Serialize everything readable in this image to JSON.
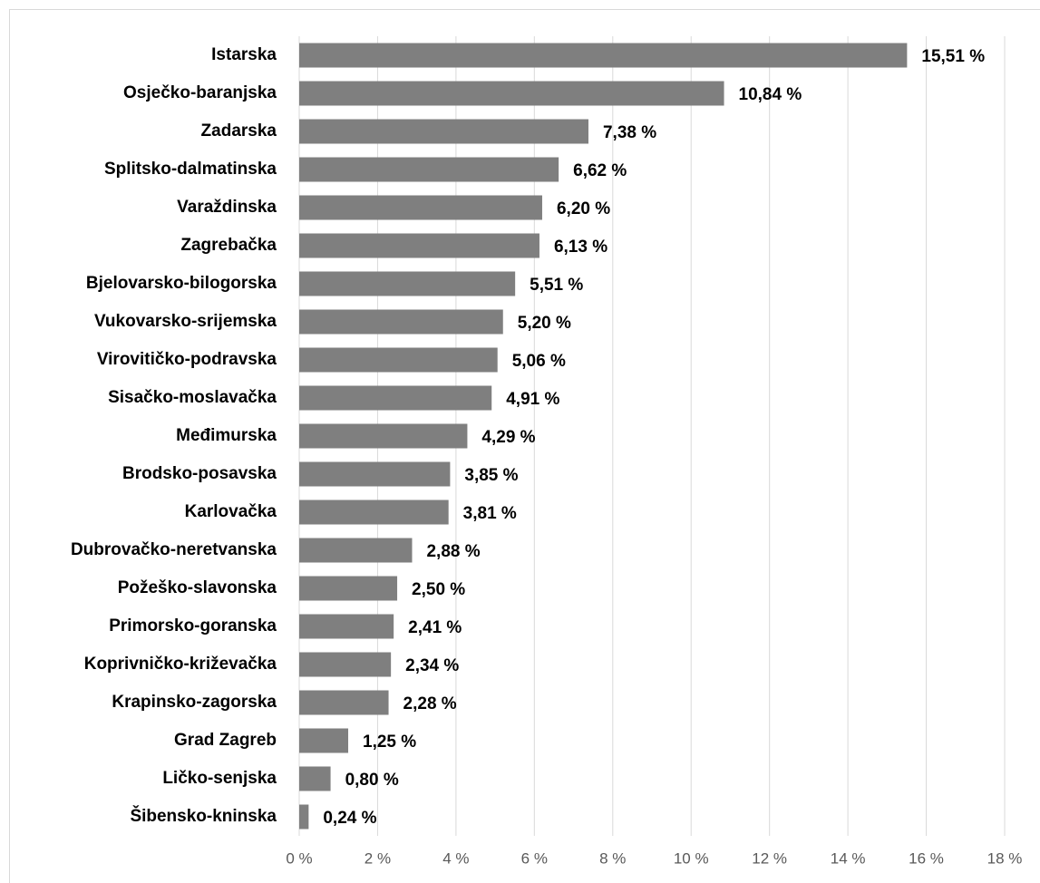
{
  "chart_data": {
    "type": "hbar",
    "categories": [
      "Istarska",
      "Osječko-baranjska",
      "Zadarska",
      "Splitsko-dalmatinska",
      "Varaždinska",
      "Zagrebačka",
      "Bjelovarsko-bilogorska",
      "Vukovarsko-srijemska",
      "Virovitičko-podravska",
      "Sisačko-moslavačka",
      "Međimurska",
      "Brodsko-posavska",
      "Karlovačka",
      "Dubrovačko-neretvanska",
      "Požeško-slavonska",
      "Primorsko-goranska",
      "Koprivničko-križevačka",
      "Krapinsko-zagorska",
      "Grad Zagreb",
      "Ličko-senjska",
      "Šibensko-kninska"
    ],
    "values": [
      15.51,
      10.84,
      7.38,
      6.62,
      6.2,
      6.13,
      5.51,
      5.2,
      5.06,
      4.91,
      4.29,
      3.85,
      3.81,
      2.88,
      2.5,
      2.41,
      2.34,
      2.28,
      1.25,
      0.8,
      0.24
    ],
    "value_labels": [
      "15,51 %",
      "10,84 %",
      "7,38 %",
      "6,62 %",
      "6,20 %",
      "6,13 %",
      "5,51 %",
      "5,20 %",
      "5,06 %",
      "4,91 %",
      "4,29 %",
      "3,85 %",
      "3,81 %",
      "2,88 %",
      "2,50 %",
      "2,41 %",
      "2,34 %",
      "2,28 %",
      "1,25 %",
      "0,80 %",
      "0,24 %"
    ],
    "color": "#7f7f7f",
    "xlim": [
      0,
      18
    ],
    "xticks": [
      {
        "value": 0,
        "label": "0 %"
      },
      {
        "value": 2,
        "label": "2 %"
      },
      {
        "value": 4,
        "label": "4 %"
      },
      {
        "value": 6,
        "label": "6 %"
      },
      {
        "value": 8,
        "label": "8 %"
      },
      {
        "value": 10,
        "label": "10 %"
      },
      {
        "value": 12,
        "label": "12 %"
      },
      {
        "value": 14,
        "label": "14 %"
      },
      {
        "value": 16,
        "label": "16 %"
      },
      {
        "value": 18,
        "label": "18 %"
      }
    ],
    "grid": true
  }
}
